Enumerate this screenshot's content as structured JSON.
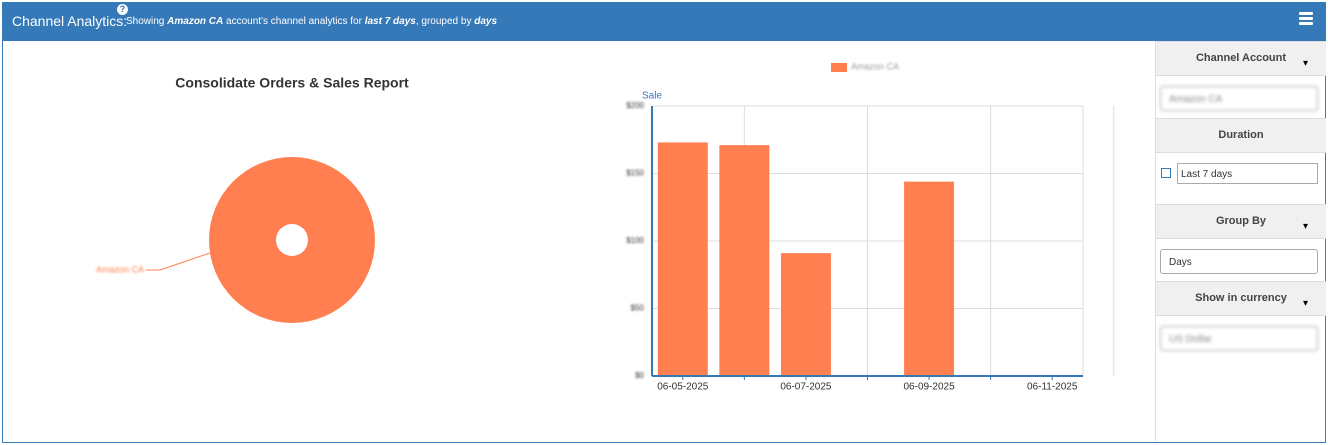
{
  "header": {
    "title": "Channel Analytics:",
    "help": "?",
    "showing": "Showing",
    "account": "Amazon CA",
    "middle": "account's channel analytics for",
    "period": "last 7 days",
    "grouped": ", grouped by",
    "group": "days"
  },
  "pie_chart": {
    "type": "pie",
    "title": "Consolidate Orders & Sales Report",
    "categories": [
      "Amazon CA"
    ],
    "values": [
      100
    ],
    "colors": [
      "#ff7f50"
    ]
  },
  "bar_chart": {
    "type": "bar",
    "y_label": "Sale",
    "categories": [
      "06-05-2025",
      null,
      "06-07-2025",
      null,
      "06-09-2025",
      null,
      "06-11-2025"
    ],
    "series": [
      {
        "name": "Amazon CA",
        "color": "#ff7f50",
        "values": [
          173,
          171,
          91,
          0,
          144,
          0,
          0
        ]
      }
    ],
    "ylim": [
      0,
      200
    ],
    "yticks": [
      {
        "value": 0,
        "label": "$0"
      },
      {
        "value": 50,
        "label": "$50"
      },
      {
        "value": 100,
        "label": "$100"
      },
      {
        "value": 150,
        "label": "$150"
      },
      {
        "value": 200,
        "label": "$200"
      }
    ],
    "grid": true
  },
  "sidebar": {
    "channel_account": {
      "label": "Channel Account",
      "value": "Amazon CA"
    },
    "duration": {
      "label": "Duration",
      "value": "Last 7 days"
    },
    "group_by": {
      "label": "Group By",
      "value": "Days"
    },
    "currency": {
      "label": "Show in currency",
      "value": "US Dollar"
    }
  }
}
